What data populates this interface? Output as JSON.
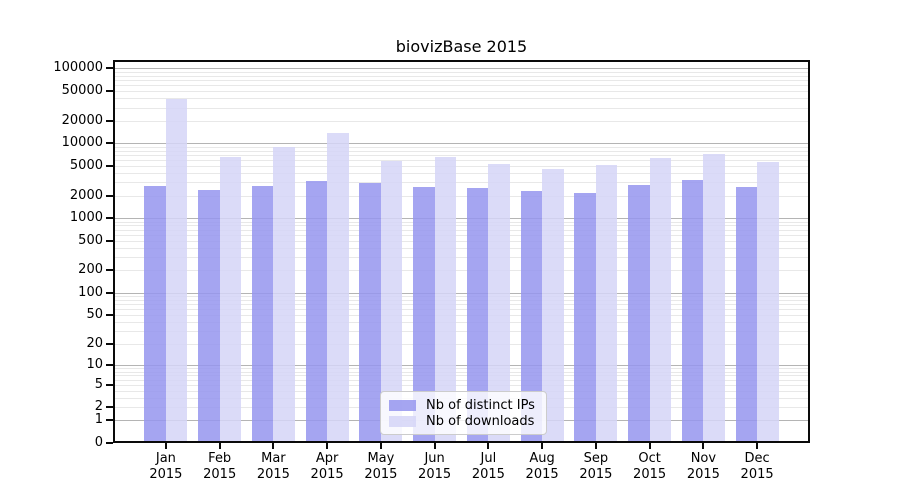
{
  "chart_data": {
    "type": "bar",
    "title": "biovizBase 2015",
    "year": "2015",
    "categories": [
      "Jan",
      "Feb",
      "Mar",
      "Apr",
      "May",
      "Jun",
      "Jul",
      "Aug",
      "Sep",
      "Oct",
      "Nov",
      "Dec"
    ],
    "series": [
      {
        "name": "Nb of distinct IPs",
        "color": "rgba(149,149,238,0.85)",
        "values": [
          2700,
          2380,
          2700,
          3100,
          2970,
          2580,
          2550,
          2280,
          2200,
          2750,
          3200,
          2580
        ]
      },
      {
        "name": "Nb of downloads",
        "color": "rgba(213,213,247,0.85)",
        "values": [
          39000,
          6500,
          8900,
          13700,
          5800,
          6500,
          5300,
          4600,
          5200,
          6300,
          7300,
          5600
        ]
      }
    ],
    "y_axis": {
      "scale": "log10(value+1)",
      "ticks": [
        0,
        1,
        2,
        5,
        10,
        20,
        50,
        100,
        200,
        500,
        1000,
        2000,
        5000,
        10000,
        20000,
        50000,
        100000
      ],
      "top_value": 129000
    },
    "x_axis": {
      "label_line2": "2015"
    },
    "grid": true,
    "legend_position": "bottom-center"
  }
}
